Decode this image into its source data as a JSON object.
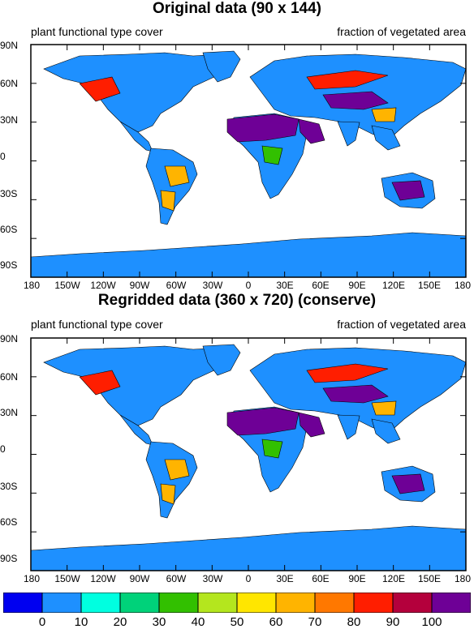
{
  "panels": [
    {
      "title": "Original data (90 x 144)",
      "left_label": "plant functional type cover",
      "right_label": "fraction of vegetated area"
    },
    {
      "title": "Regridded data (360 x 720) (conserve)",
      "left_label": "plant functional type cover",
      "right_label": "fraction of vegetated area"
    }
  ],
  "lat_labels": [
    "90N",
    "60N",
    "30N",
    "0",
    "30S",
    "60S",
    "90S"
  ],
  "lon_labels": [
    "180",
    "150W",
    "120W",
    "90W",
    "60W",
    "30W",
    "0",
    "30E",
    "60E",
    "90E",
    "120E",
    "150E",
    "180"
  ],
  "colorbar": {
    "labels": [
      "0",
      "10",
      "20",
      "30",
      "40",
      "50",
      "60",
      "70",
      "80",
      "90",
      "100"
    ],
    "colors": [
      "#0000f0",
      "#1e90ff",
      "#00ffe0",
      "#00d27a",
      "#32c000",
      "#b4e61e",
      "#ffe600",
      "#ffb400",
      "#ff7800",
      "#ff1e00",
      "#b4003c",
      "#6e0096"
    ]
  },
  "palette": {
    "base": "#1e90ff",
    "desert": "#6e0096",
    "warm": "#ff1e00",
    "orange": "#ffb400",
    "green": "#32c000"
  }
}
